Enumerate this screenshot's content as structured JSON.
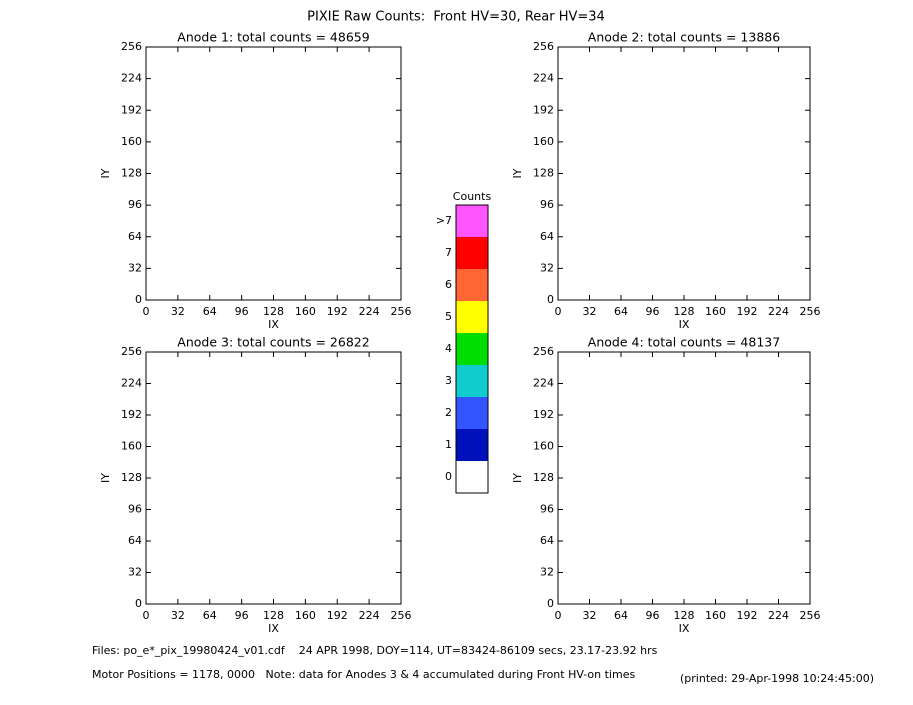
{
  "title": "PIXIE Raw Counts:  Front HV=30, Rear HV=34",
  "chart_data": [
    {
      "type": "heatmap",
      "title": "Anode 1: total counts = 48659",
      "xlabel": "IX",
      "ylabel": "IY",
      "xlim": [
        0,
        256
      ],
      "ylim": [
        0,
        256
      ],
      "xticks": [
        0,
        32,
        64,
        96,
        128,
        160,
        192,
        224,
        256
      ],
      "yticks": [
        0,
        32,
        64,
        96,
        128,
        160,
        192,
        224,
        256
      ]
    },
    {
      "type": "heatmap",
      "title": "Anode 2: total counts = 13886",
      "xlabel": "IX",
      "ylabel": "IY",
      "xlim": [
        0,
        256
      ],
      "ylim": [
        0,
        256
      ],
      "xticks": [
        0,
        32,
        64,
        96,
        128,
        160,
        192,
        224,
        256
      ],
      "yticks": [
        0,
        32,
        64,
        96,
        128,
        160,
        192,
        224,
        256
      ]
    },
    {
      "type": "heatmap",
      "title": "Anode 3: total counts = 26822",
      "xlabel": "IX",
      "ylabel": "IY",
      "xlim": [
        0,
        256
      ],
      "ylim": [
        0,
        256
      ],
      "xticks": [
        0,
        32,
        64,
        96,
        128,
        160,
        192,
        224,
        256
      ],
      "yticks": [
        0,
        32,
        64,
        96,
        128,
        160,
        192,
        224,
        256
      ]
    },
    {
      "type": "heatmap",
      "title": "Anode 4: total counts = 48137",
      "xlabel": "IX",
      "ylabel": "IY",
      "xlim": [
        0,
        256
      ],
      "ylim": [
        0,
        256
      ],
      "xticks": [
        0,
        32,
        64,
        96,
        128,
        160,
        192,
        224,
        256
      ],
      "yticks": [
        0,
        32,
        64,
        96,
        128,
        160,
        192,
        224,
        256
      ]
    }
  ],
  "colorbar": {
    "title": "Counts",
    "labels": [
      ">7",
      "7",
      "6",
      "5",
      "4",
      "3",
      "2",
      "1",
      "0"
    ],
    "colors": [
      "#ff55ff",
      "#ff0000",
      "#ff6633",
      "#ffff00",
      "#00dd00",
      "#11cccc",
      "#3355ff",
      "#0011bb",
      "#ffffff"
    ]
  },
  "footer": {
    "files": "Files: po_e*_pix_19980424_v01.cdf    24 APR 1998, DOY=114, UT=83424-86109 secs, 23.17-23.92 hrs",
    "motor": "Motor Positions = 1178, 0000   Note: data for Anodes 3 & 4 accumulated during Front HV-on times",
    "printed": "(printed: 29-Apr-1998 10:24:45:00)"
  }
}
